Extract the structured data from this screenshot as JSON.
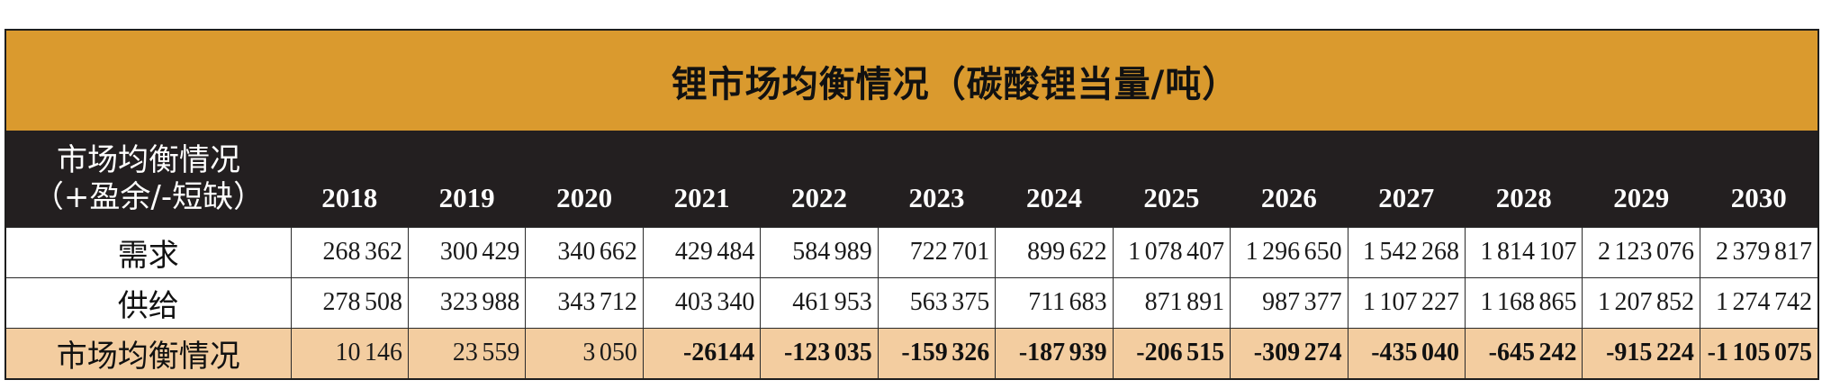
{
  "colors": {
    "title_band": "#DA9A2E",
    "header_band": "#231F20",
    "balance_row": "#F3CDA0"
  },
  "chart_data": {
    "type": "table",
    "title": "锂市场均衡情况（碳酸锂当量/吨）",
    "row_header": [
      "市场均衡情况",
      "（+盈余/-短缺）"
    ],
    "columns": [
      "2018",
      "2019",
      "2020",
      "2021",
      "2022",
      "2023",
      "2024",
      "2025",
      "2026",
      "2027",
      "2028",
      "2029",
      "2030"
    ],
    "rows": [
      {
        "label": "需求",
        "values": [
          "268 362",
          "300 429",
          "340 662",
          "429 484",
          "584 989",
          "722 701",
          "899 622",
          "1 078 407",
          "1 296 650",
          "1 542 268",
          "1 814 107",
          "2 123 076",
          "2 379 817"
        ]
      },
      {
        "label": "供给",
        "values": [
          "278 508",
          "323 988",
          "343 712",
          "403 340",
          "461 953",
          "563 375",
          "711 683",
          "871 891",
          "987 377",
          "1 107 227",
          "1 168 865",
          "1 207 852",
          "1 274 742"
        ]
      },
      {
        "label": "市场均衡情况",
        "values": [
          "10 146",
          "23 559",
          "3 050",
          "-26144",
          "-123 035",
          "-159 326",
          "-187 939",
          "-206 515",
          "-309 274",
          "-435 040",
          "-645 242",
          "-915 224",
          "-1 105 075"
        ]
      }
    ]
  }
}
